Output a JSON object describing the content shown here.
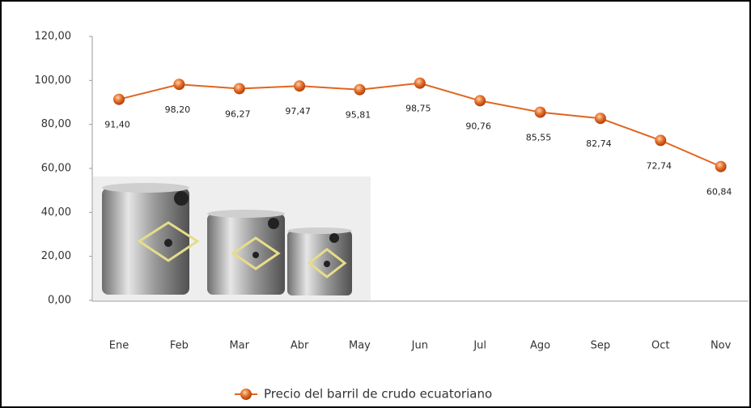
{
  "chart_data": {
    "type": "line",
    "categories": [
      "Ene",
      "Feb",
      "Mar",
      "Abr",
      "May",
      "Jun",
      "Jul",
      "Ago",
      "Sep",
      "Oct",
      "Nov"
    ],
    "series": [
      {
        "name": "Precio del barril de crudo ecuatoriano",
        "color": "#e0651f",
        "values": [
          91.4,
          98.2,
          96.27,
          97.47,
          95.81,
          98.75,
          90.76,
          85.55,
          82.74,
          72.74,
          60.84
        ],
        "value_labels": [
          "91,40",
          "98,20",
          "96,27",
          "97,47",
          "95,81",
          "98,75",
          "90,76",
          "85,55",
          "82,74",
          "72,74",
          "60,84"
        ]
      }
    ],
    "ylim": [
      0,
      120
    ],
    "yticks": [
      {
        "value": 0,
        "label": "0,00"
      },
      {
        "value": 20,
        "label": "20,00"
      },
      {
        "value": 40,
        "label": "40,00"
      },
      {
        "value": 60,
        "label": "60,00"
      },
      {
        "value": 80,
        "label": "80,00"
      },
      {
        "value": 100,
        "label": "100,00"
      },
      {
        "value": 120,
        "label": "120,00"
      }
    ],
    "legend": "bottom"
  }
}
